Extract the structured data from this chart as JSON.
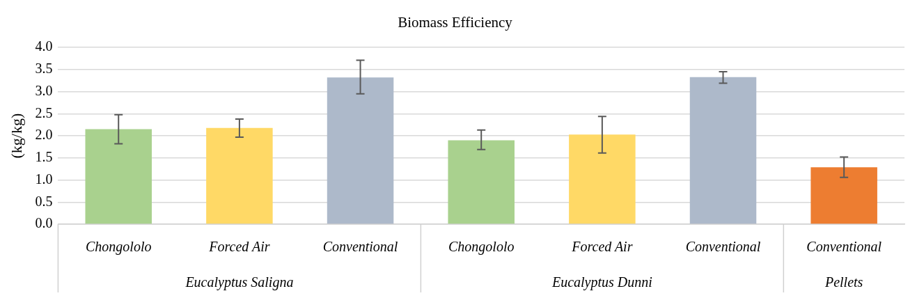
{
  "chart_data": {
    "type": "bar",
    "title": "Biomass Efficiency",
    "ylabel": "(kg/kg)",
    "categories": [
      "Chongololo",
      "Forced Air",
      "Conventional",
      "Chongololo",
      "Forced Air",
      "Conventional",
      "Conventional"
    ],
    "values": [
      2.15,
      2.18,
      3.32,
      1.9,
      2.03,
      3.33,
      1.29
    ],
    "colors": [
      "#a9d18e",
      "#ffd966",
      "#adb9ca",
      "#a9d18e",
      "#ffd966",
      "#adb9ca",
      "#ed7d31"
    ],
    "errors": [
      [
        1.82,
        2.48
      ],
      [
        1.97,
        2.38
      ],
      [
        2.95,
        3.71
      ],
      [
        1.69,
        2.13
      ],
      [
        1.61,
        2.44
      ],
      [
        3.19,
        3.45
      ],
      [
        1.06,
        1.52
      ]
    ],
    "ylim": [
      0,
      4
    ],
    "yticks": [
      {
        "value": 0,
        "label": "0.0"
      },
      0.5,
      {
        "value": 1,
        "label": "1.0"
      },
      1.5,
      {
        "value": 2,
        "label": "2.0"
      },
      2.5,
      {
        "value": 3,
        "label": "3.0"
      },
      3.5,
      {
        "value": 4,
        "label": "4.0"
      }
    ],
    "annotations": [
      "Eucalyptus Saligna",
      "Eucalyptus Dunni",
      "Pellets"
    ],
    "grid": "y",
    "legend": false
  }
}
